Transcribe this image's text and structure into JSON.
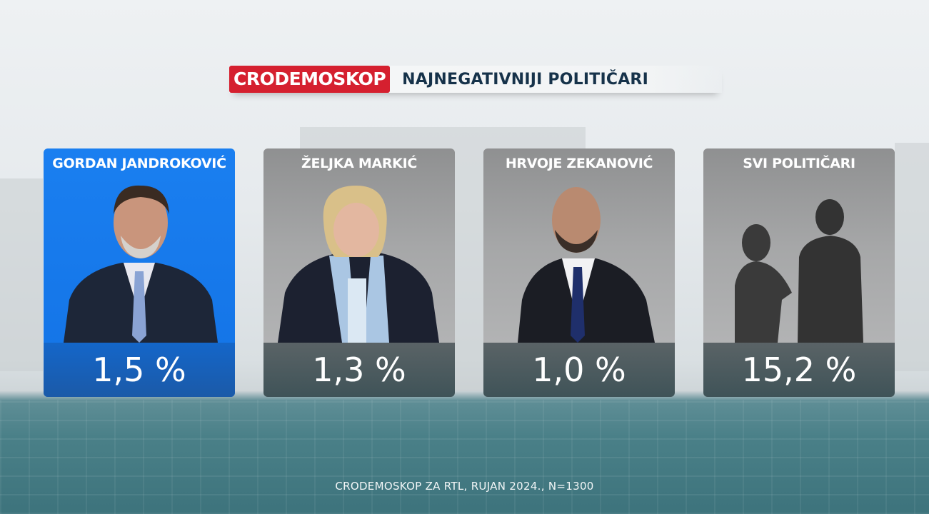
{
  "header": {
    "brand": "CRODEMOSKOP",
    "title": "NAJNEGATIVNIJI POLITIČARI"
  },
  "cards": [
    {
      "name": "GORDAN JANDROKOVIĆ",
      "value": "1,5 %",
      "trend": "down",
      "highlight_color": "#1a7ff0"
    },
    {
      "name": "ŽELJKA MARKIĆ",
      "value": "1,3 %",
      "trend": "down"
    },
    {
      "name": "HRVOJE ZEKANOVIĆ",
      "value": "1,0 %",
      "trend": "down"
    },
    {
      "name": "SVI POLITIČARI",
      "value": "15,2 %"
    }
  ],
  "trend_arrow_color": "#3ecf2a",
  "brand_color": "#d5202f",
  "footer": "CRODEMOSKOP ZA RTL,  RUJAN 2024., N=1300"
}
